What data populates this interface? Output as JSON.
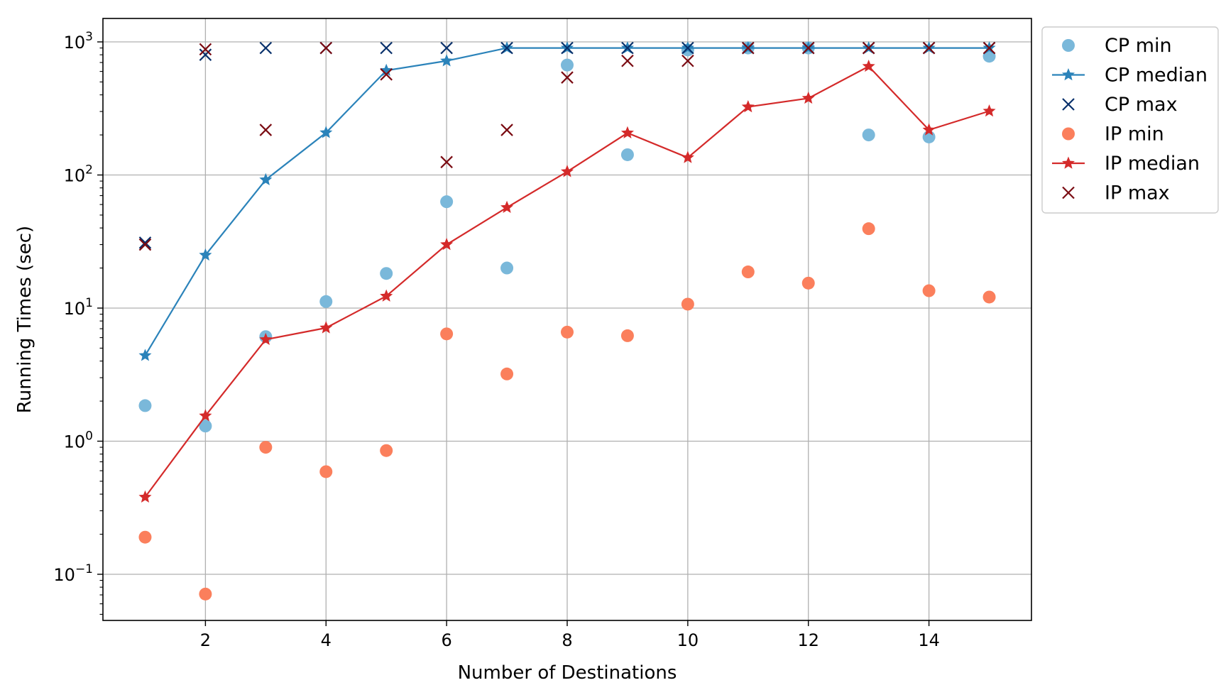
{
  "chart_data": {
    "type": "scatter",
    "title": "",
    "xlabel": "Number of Destinations",
    "ylabel": "Running Times (sec)",
    "xscale": "linear",
    "yscale": "log",
    "xlim": [
      0.3,
      15.7
    ],
    "ylim": [
      0.045,
      1500
    ],
    "xticks": [
      2,
      4,
      6,
      8,
      10,
      12,
      14
    ],
    "yticks": [
      {
        "value": 0.1,
        "base": "10",
        "exp": "−1"
      },
      {
        "value": 1,
        "base": "10",
        "exp": "0"
      },
      {
        "value": 10,
        "base": "10",
        "exp": "1"
      },
      {
        "value": 100,
        "base": "10",
        "exp": "2"
      },
      {
        "value": 1000,
        "base": "10",
        "exp": "3"
      }
    ],
    "grid": true,
    "legend_position": "outside-top-right",
    "x": [
      1,
      2,
      3,
      4,
      5,
      6,
      7,
      8,
      9,
      10,
      11,
      12,
      13,
      14,
      15
    ],
    "series": [
      {
        "name": "CP min",
        "marker": "circle",
        "line": false,
        "color": "#7ab8da",
        "values": [
          1.85,
          1.3,
          6.1,
          11.2,
          18.2,
          63,
          20,
          670,
          142,
          870,
          900,
          900,
          200,
          193,
          780
        ]
      },
      {
        "name": "CP median",
        "marker": "star",
        "line": true,
        "color": "#2b83ba",
        "values": [
          4.4,
          25,
          92,
          208,
          610,
          720,
          900,
          900,
          900,
          900,
          900,
          900,
          900,
          900,
          900
        ]
      },
      {
        "name": "CP max",
        "marker": "x",
        "line": false,
        "color": "#08306b",
        "values": [
          31,
          800,
          900,
          900,
          900,
          900,
          900,
          900,
          900,
          900,
          900,
          900,
          900,
          900,
          900
        ]
      },
      {
        "name": "IP min",
        "marker": "circle",
        "line": false,
        "color": "#fb7f5c",
        "values": [
          0.19,
          0.071,
          0.9,
          0.59,
          0.85,
          6.4,
          3.2,
          6.6,
          6.2,
          10.7,
          18.7,
          15.4,
          39.5,
          13.5,
          12.1
        ]
      },
      {
        "name": "IP median",
        "marker": "star",
        "line": true,
        "color": "#d42a2a",
        "values": [
          0.38,
          1.55,
          5.8,
          7.1,
          12.3,
          30,
          57,
          106,
          207,
          135,
          325,
          377,
          655,
          218,
          302
        ]
      },
      {
        "name": "IP max",
        "marker": "x",
        "line": false,
        "color": "#7a0b12",
        "values": [
          30,
          880,
          218,
          900,
          570,
          125,
          218,
          540,
          720,
          720,
          900,
          900,
          900,
          900,
          900
        ]
      }
    ]
  }
}
